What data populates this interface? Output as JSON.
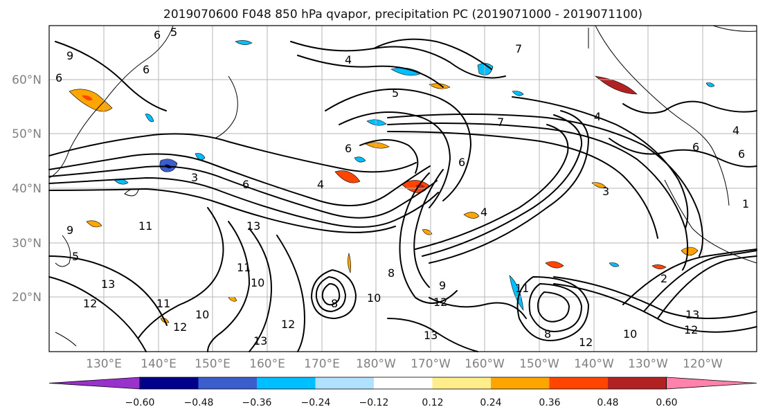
{
  "title": "2019070600 F048 850 hPa qvapor, precipitation PC (2019071000 - 2019071100)",
  "lat_labels": [
    "60°N",
    "50°N",
    "40°N",
    "30°N",
    "20°N"
  ],
  "lon_labels": [
    "130°E",
    "140°E",
    "150°E",
    "160°E",
    "170°E",
    "180°W",
    "170°W",
    "160°W",
    "150°W",
    "140°W",
    "130°W",
    "120°W"
  ],
  "colorbar": {
    "tick_labels": [
      "−0.60",
      "−0.48",
      "−0.36",
      "−0.24",
      "−0.12",
      "0.12",
      "0.24",
      "0.36",
      "0.48",
      "0.60"
    ],
    "colors": [
      "#9932cc",
      "#00008b",
      "#3a5fcd",
      "#00bfff",
      "#b0e2ff",
      "#ffffff",
      "#ffec8b",
      "#ffa500",
      "#ff4500",
      "#b22222",
      "#ff82ab"
    ]
  },
  "contour_labels": [
    "6",
    "9",
    "6",
    "5",
    "4",
    "6",
    "6",
    "5",
    "6",
    "4",
    "3",
    "7",
    "6",
    "11",
    "13",
    "9",
    "5",
    "13",
    "12",
    "11",
    "10",
    "12",
    "12",
    "10",
    "13",
    "11",
    "8",
    "4",
    "10",
    "8",
    "12",
    "11",
    "13",
    "9",
    "8",
    "12",
    "13",
    "12",
    "10",
    "2",
    "4",
    "7",
    "6",
    "4",
    "6",
    "3",
    "1"
  ]
}
